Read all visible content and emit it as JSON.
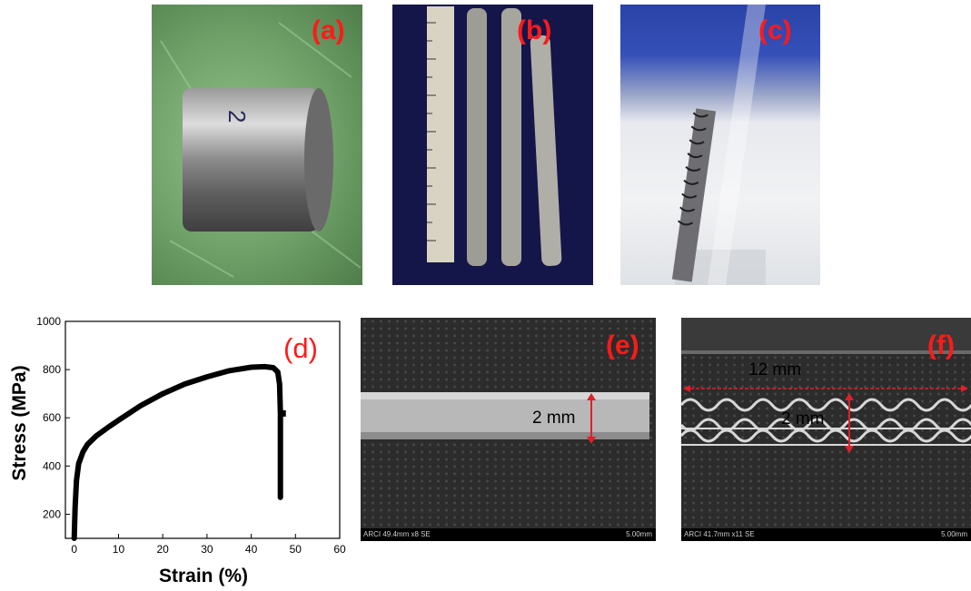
{
  "panels": {
    "a": {
      "label": "(a)"
    },
    "b": {
      "label": "(b)"
    },
    "c": {
      "label": "(c)"
    },
    "d": {
      "label": "(d)"
    },
    "e": {
      "label": "(e)",
      "dimension": "2 mm",
      "info_left": "ARCI 49.4mm x8 SE",
      "scale_text": "5.00mm"
    },
    "f": {
      "label": "(f)",
      "dimension_width": "12 mm",
      "dimension_height": "2 mm",
      "info_left": "ARCI 41.7mm x11 SE",
      "scale_text": "5.00mm"
    }
  },
  "colors": {
    "label_red": "#ff1a1a",
    "arrow_red": "#e0202a"
  },
  "chart_data": {
    "type": "line",
    "xlabel": "Strain (%)",
    "ylabel": "Stress (MPa)",
    "xlim": [
      -2,
      60
    ],
    "ylim": [
      100,
      1000
    ],
    "xticks": [
      "0",
      "10",
      "20",
      "30",
      "40",
      "50",
      "60"
    ],
    "yticks": [
      "200",
      "400",
      "600",
      "800",
      "1000"
    ],
    "grid": false,
    "series": [
      {
        "x": [
          0,
          0.2,
          0.5,
          1,
          2,
          3,
          5,
          8,
          10,
          15,
          20,
          25,
          30,
          35,
          40,
          43,
          45,
          46,
          46.4,
          46.6,
          46.6
        ],
        "y": [
          100,
          230,
          340,
          410,
          460,
          490,
          525,
          565,
          590,
          650,
          700,
          740,
          770,
          795,
          810,
          812,
          808,
          790,
          740,
          620,
          270
        ]
      }
    ]
  }
}
